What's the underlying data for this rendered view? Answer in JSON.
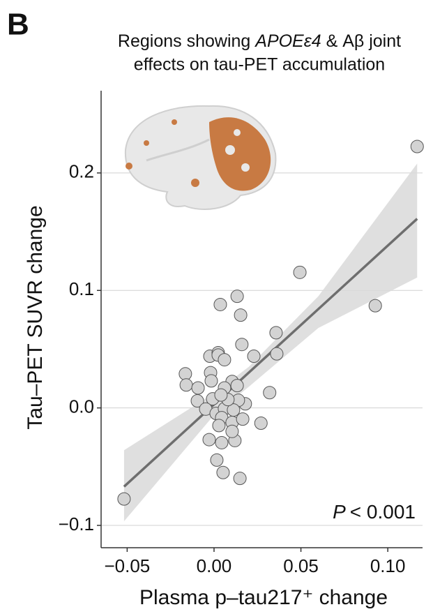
{
  "chart_data": {
    "type": "scatter",
    "panel_label": "B",
    "title_line1_pre": "Regions showing ",
    "title_italic": "APOEε4",
    "title_line1_post": " & Aβ joint",
    "title_line2": "effects on tau-PET accumulation",
    "x_label": "Plasma p–tau217⁺ change",
    "y_label": "Tau–PET SUVR change",
    "annotation_italic": "P",
    "annotation_text": "< 0.001",
    "xlim": [
      -0.065,
      0.12
    ],
    "ylim": [
      -0.119,
      0.27
    ],
    "xticks": [
      {
        "value": -0.05,
        "label": "−0.05"
      },
      {
        "value": 0,
        "label": "0.00"
      },
      {
        "value": 0.05,
        "label": "0.05"
      },
      {
        "value": 0.1,
        "label": "0.10"
      }
    ],
    "yticks": [
      {
        "value": -0.1,
        "label": "−0.1"
      },
      {
        "value": 0,
        "label": "0.0"
      },
      0.1,
      0.2
    ],
    "grid": true,
    "point_color": "#d3d3d3",
    "x": [
      0.1169,
      -0.0518,
      0.0928,
      0.0494,
      0.0357,
      0.0361,
      0.0133,
      0.0036,
      0.0153,
      0.016,
      0.0229,
      0.032,
      0.027,
      -0.0165,
      -0.016,
      -0.0092,
      -0.0096,
      -0.0024,
      0.0024,
      0.0024,
      0.006,
      -0.002,
      -0.0016,
      0.0104,
      0.0133,
      0.006,
      0.018,
      0.014,
      -0.0008,
      -0.0048,
      0.0012,
      0.006,
      0.0112,
      0.0044,
      0.0028,
      0.0104,
      0.0165,
      -0.0028,
      0.0044,
      0.012,
      0.0104,
      0.0016,
      0.0052,
      0.0149,
      0.008,
      0.004
    ],
    "y": [
      0.2225,
      -0.0775,
      0.087,
      0.1154,
      0.064,
      0.046,
      0.095,
      0.088,
      0.079,
      0.054,
      0.044,
      0.013,
      -0.013,
      0.029,
      0.0195,
      0.017,
      0.006,
      0.044,
      0.047,
      0.045,
      0.041,
      0.03,
      0.023,
      0.0225,
      0.019,
      0.017,
      0.0035,
      0.0065,
      0.0077,
      -0.001,
      -0.0047,
      -0.0006,
      -0.0018,
      -0.0083,
      -0.015,
      -0.0124,
      -0.0095,
      -0.027,
      -0.0296,
      -0.0278,
      -0.02,
      -0.0444,
      -0.055,
      -0.06,
      0.0071,
      0.011
    ],
    "fit": {
      "color": "#6e6e6e",
      "x": [
        -0.0518,
        0.1169
      ],
      "y": [
        -0.067,
        0.161
      ]
    },
    "band": {
      "color": "#d9d9d9",
      "x": [
        -0.0518,
        0,
        0.02,
        0.06,
        0.1169
      ],
      "upper": [
        -0.036,
        0.0125,
        0.035,
        0.095,
        0.208
      ],
      "lower": [
        -0.0965,
        -0.006,
        0.018,
        0.068,
        0.111
      ]
    }
  }
}
